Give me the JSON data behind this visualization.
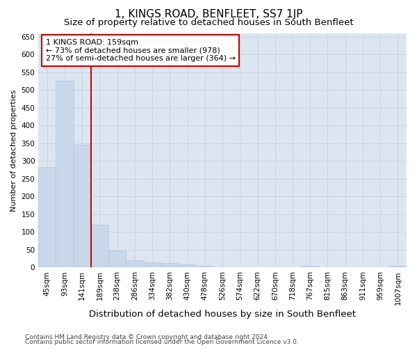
{
  "title": "1, KINGS ROAD, BENFLEET, SS7 1JP",
  "subtitle": "Size of property relative to detached houses in South Benfleet",
  "xlabel": "Distribution of detached houses by size in South Benfleet",
  "ylabel": "Number of detached properties",
  "bins": [
    "45sqm",
    "93sqm",
    "141sqm",
    "189sqm",
    "238sqm",
    "286sqm",
    "334sqm",
    "382sqm",
    "430sqm",
    "478sqm",
    "526sqm",
    "574sqm",
    "622sqm",
    "670sqm",
    "718sqm",
    "767sqm",
    "815sqm",
    "863sqm",
    "911sqm",
    "959sqm",
    "1007sqm"
  ],
  "values": [
    283,
    525,
    345,
    120,
    48,
    20,
    15,
    12,
    8,
    5,
    0,
    0,
    0,
    0,
    0,
    5,
    0,
    0,
    0,
    0,
    5
  ],
  "bar_color": "#c8d8ea",
  "bar_edge_color": "#b0c4d8",
  "vline_x_index": 2.0,
  "vline_color": "#cc0000",
  "annotation_text": "1 KINGS ROAD: 159sqm\n← 73% of detached houses are smaller (978)\n27% of semi-detached houses are larger (364) →",
  "annotation_box_facecolor": "white",
  "annotation_box_edgecolor": "#cc0000",
  "ylim": [
    0,
    660
  ],
  "yticks": [
    0,
    50,
    100,
    150,
    200,
    250,
    300,
    350,
    400,
    450,
    500,
    550,
    600,
    650
  ],
  "grid_color": "#c8d4e4",
  "fig_background": "#ffffff",
  "axes_background": "#dce6f0",
  "footer_line1": "Contains HM Land Registry data © Crown copyright and database right 2024.",
  "footer_line2": "Contains public sector information licensed under the Open Government Licence v3.0.",
  "title_fontsize": 11,
  "subtitle_fontsize": 9.5,
  "xlabel_fontsize": 9.5,
  "ylabel_fontsize": 8,
  "tick_fontsize": 7.5,
  "annotation_fontsize": 8,
  "footer_fontsize": 6.5
}
